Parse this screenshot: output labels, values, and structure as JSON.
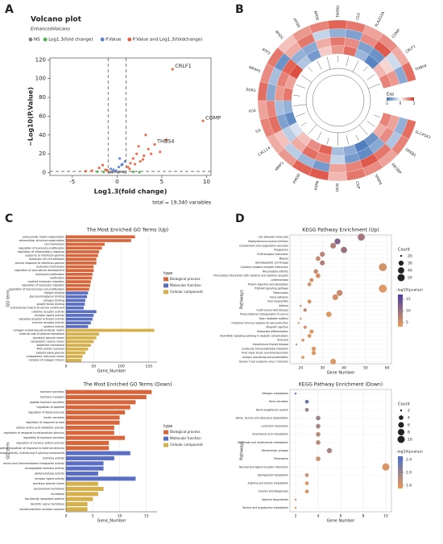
{
  "panels": [
    "A",
    "B",
    "C",
    "D"
  ],
  "chart_data": [
    {
      "type": "scatter",
      "title": "Volcano plot",
      "subtitle": "EnhancedVolcano",
      "xlabel": "Log1.3(fold change)",
      "ylabel": "−Log10(P.Value)",
      "caption": "total = 19,340 variables",
      "xlim": [
        -7.5,
        10.5
      ],
      "ylim": [
        -3,
        122
      ],
      "xticks": [
        -5,
        0,
        5,
        10
      ],
      "yticks": [
        0,
        20,
        40,
        60,
        80,
        100,
        120
      ],
      "thresholds": {
        "x": [
          -1,
          1
        ],
        "y": [
          1.3
        ]
      },
      "series": [
        {
          "name": "NS",
          "color": "#808080",
          "x": [
            -0.5,
            0.3,
            -0.8,
            0.6,
            0.1,
            -0.2,
            0.8,
            -0.6
          ],
          "values": [
            0.5,
            0.8,
            0.3,
            1.0,
            0.2,
            1.1,
            0.6,
            0.9
          ]
        },
        {
          "name": "Log1.3(fold change)",
          "color": "#4caf50",
          "x": [
            -1.5,
            1.8,
            2.5,
            -2.2
          ],
          "values": [
            0.6,
            0.9,
            0.4,
            1.0
          ]
        },
        {
          "name": "P.Value",
          "color": "#5b7fd4",
          "x": [
            -0.4,
            0.2,
            0.6,
            -0.7,
            0.9,
            0.3,
            -0.1,
            0.5
          ],
          "values": [
            3,
            6,
            9,
            4,
            12,
            15,
            2,
            8
          ]
        },
        {
          "name": "P.Value and Log1.3(foldchange)",
          "color": "#e8603c",
          "x": [
            -1.3,
            -2,
            -2.8,
            -1.6,
            -3.5,
            1.2,
            1.5,
            1.8,
            2.2,
            2.6,
            3,
            3.5,
            4.2,
            4.8,
            5.5,
            6.2,
            9.6,
            2.4,
            3.2,
            -1.1,
            1.4,
            2,
            2.9,
            3.8
          ],
          "values": [
            3,
            5,
            2,
            8,
            1.5,
            6,
            10,
            15,
            20,
            12,
            18,
            25,
            30,
            22,
            35,
            110,
            55,
            28,
            40,
            2.5,
            4,
            9,
            14,
            20
          ]
        }
      ],
      "annotations": [
        {
          "text": "CRLF1",
          "x": 6.2,
          "y": 110
        },
        {
          "text": "COMP",
          "x": 9.6,
          "y": 55
        },
        {
          "text": "THBS4",
          "x": 4.2,
          "y": 30
        }
      ]
    },
    {
      "type": "heatmap",
      "layout": "circular",
      "legend_title": "Exp",
      "clim": [
        -2,
        2
      ],
      "cticks": [
        -2,
        0,
        2
      ],
      "colors": [
        "#3b6fb6",
        "#ffffff",
        "#d7301f"
      ],
      "genes": [
        "SLC45A3",
        "GREB1",
        "ABI3BP",
        "SFRP4",
        "CILP",
        "OGN",
        "ASPN",
        "FMOD",
        "MMP3",
        "CXCL14",
        "IL6",
        "FOS",
        "EGR1",
        "NR4A1",
        "ATF3",
        "MYOC",
        "APOD",
        "APOE",
        "TREM1",
        "CLU",
        "PLA2G2A",
        "COMP",
        "CRLF1",
        "THBS4"
      ],
      "rows": [
        [
          1.2,
          0.8,
          -1.5,
          -1.8,
          -1.2,
          -0.9,
          1.5,
          1.1,
          0.6,
          -0.4,
          -1.6,
          -1.1,
          1.3,
          0.9,
          1.7,
          -0.8,
          -1.4,
          0.5,
          1.0,
          1.4,
          -1.0,
          -1.7,
          0.7,
          1.2
        ],
        [
          0.9,
          1.1,
          -1.2,
          -1.6,
          -1.4,
          -0.6,
          1.2,
          1.4,
          0.8,
          -0.7,
          -1.3,
          -0.9,
          1.0,
          1.2,
          1.5,
          -1.1,
          -1.2,
          0.8,
          1.3,
          1.1,
          -1.3,
          -1.5,
          0.4,
          1.0
        ],
        [
          -1.1,
          -0.8,
          1.3,
          1.6,
          1.2,
          0.9,
          -1.4,
          -1.0,
          -0.7,
          0.6,
          1.4,
          1.2,
          -1.2,
          -0.9,
          -1.5,
          0.8,
          1.3,
          -0.6,
          -1.1,
          -1.3,
          1.1,
          1.6,
          -0.5,
          -1.2
        ],
        [
          1.4,
          1.2,
          0.9,
          1.1,
          1.3,
          0.7,
          1.6,
          1.5,
          1.0,
          0.8,
          1.2,
          0.9,
          1.4,
          1.1,
          1.3,
          0.6,
          1.0,
          1.2,
          1.5,
          1.3,
          0.9,
          1.1,
          0.8,
          1.4
        ]
      ]
    },
    {
      "type": "bar",
      "orientation": "horizontal",
      "title": "The Most Enriched GO Terms (Up)",
      "xlabel": "Gene_Number",
      "ylabel": "GO term",
      "legend_title": "type",
      "xlim": [
        0,
        165
      ],
      "xticks": [
        0,
        50,
        100,
        150
      ],
      "series": [
        {
          "name": "Biological process",
          "color": "#d9663a",
          "categories": [
            "extracellular matrix organization",
            "extracellular structure organization",
            "cell chemotaxis",
            "regulation of leukocyte proliferation",
            "regulation of inflammatory response",
            "response to interferon-gamma",
            "leukocyte cell-cell adhesion",
            "cellular response to interferon-gamma",
            "leukocyte chemotaxis",
            "regulation of vasculature development",
            "leukocyte proliferation",
            "ossification",
            "myeloid leukocyte migration",
            "regulation of leukocyte migration",
            "regulation of mononuclear cell proliferation"
          ],
          "values": [
            125,
            118,
            70,
            65,
            60,
            58,
            55,
            55,
            50,
            50,
            48,
            47,
            45,
            44,
            42
          ]
        },
        {
          "name": "Molecular function",
          "color": "#5a6fc4",
          "categories": [
            "integrin binding",
            "glycosaminoglycan binding",
            "collagen binding",
            "growth factor binding",
            "extracellular matrix structural constituent",
            "cytokine receptor activity",
            "receptor ligand activity",
            "signaling receptor activator activity",
            "immune receptor activity",
            "cytokine activity"
          ],
          "values": [
            40,
            38,
            35,
            34,
            32,
            55,
            50,
            48,
            45,
            40
          ]
        },
        {
          "name": "Cellular component",
          "color": "#d6b04a",
          "categories": [
            "collagen-containing extracellular matrix",
            "external side of plasma membrane",
            "secretory granule lumen",
            "cytoplasmic vesicle lumen",
            "basement membrane",
            "MHC protein complex",
            "platelet alpha granule",
            "endoplasmic reticulum lumen",
            "complex of collagen trimers"
          ],
          "values": [
            160,
            60,
            55,
            50,
            45,
            40,
            35,
            30,
            28
          ]
        }
      ]
    },
    {
      "type": "bar",
      "orientation": "horizontal",
      "title": "The Most Enriched GO Terms (Down)",
      "xlabel": "Gene_Number",
      "ylabel": "GO term",
      "legend_title": "type",
      "xlim": [
        0,
        17
      ],
      "xticks": [
        0,
        5,
        10,
        15
      ],
      "series": [
        {
          "name": "Biological process",
          "color": "#d9663a",
          "categories": [
            "hormone secretion",
            "hormone transport",
            "peptide hormone secretion",
            "regulation of appetite",
            "regulation of blood pressure",
            "insulin secretion",
            "regulation of response to food",
            "cellular amino acid metabolic process",
            "regulation of response to extracellular stimulus",
            "regulation of hormone secretion",
            "regulation of nervous system process",
            "negative regulation of response to external stimulus"
          ],
          "values": [
            16,
            15,
            13,
            12,
            11,
            10,
            10,
            9,
            9,
            11,
            8,
            8
          ]
        },
        {
          "name": "Molecular function",
          "color": "#5a6fc4",
          "categories": [
            "hydrolase activity, hydrolyzing O-glycosyl compounds",
            "hormone activity",
            "amino acid transmembrane transporter activity",
            "neuropeptide hormone activity",
            "oxidoreductase activity",
            "receptor ligand activity"
          ],
          "values": [
            12,
            9,
            7,
            7,
            6,
            13
          ]
        },
        {
          "name": "Cellular component",
          "color": "#d6b04a",
          "categories": [
            "secretory granule lumen",
            "peroxisomal membrane",
            "microbody",
            "low-density lipoprotein particle",
            "dendritic spine membrane",
            "neurotransmitter receptor complex"
          ],
          "values": [
            6,
            7,
            6,
            5,
            4,
            4
          ]
        }
      ]
    },
    {
      "type": "dot",
      "title": "KEGG Pathway Enrichment (Up)",
      "xlabel": "Gene Number",
      "ylabel": "Pathways",
      "size_title": "Count",
      "color_title": "-log10(pvalue)",
      "xlim": [
        15,
        62
      ],
      "xticks": [
        20,
        30,
        40,
        50,
        60
      ],
      "size_ticks": [
        20,
        30,
        40,
        50
      ],
      "clim": [
        3,
        17
      ],
      "cticks": [
        5,
        10,
        15
      ],
      "colors": [
        "#e8a060",
        "#4b3fa0"
      ],
      "categories": [
        "Cell adhesion molecules",
        "Staphylococcus aureus infection",
        "Complement and coagulation cascades",
        "Phagosome",
        "ECM-receptor interaction",
        "Malaria",
        "Hematopoietic cell lineage",
        "Cytokine-cytokine receptor interaction",
        "Rheumatoid arthritis",
        "Viral protein interaction with cytokine and cytokine receptor",
        "Leishmaniasis",
        "Protein digestion and absorption",
        "PI3K-Akt signaling pathway",
        "Tuberculosis",
        "Focal adhesion",
        "Viral myocarditis",
        "Asthma",
        "Graft-versus-host disease",
        "Transcriptional misregulation in cancer",
        "Type I diabetes mellitus",
        "Intestinal immune network for IgA production",
        "Allograft rejection",
        "Osteoclast differentiation",
        "AGE-RAGE signaling pathway in diabetic complications",
        "Pertussis",
        "Autoimmune thyroid disease",
        "Leukocyte transendothelial migration",
        "Fluid shear stress and atherosclerosis",
        "Antigen processing and presentation",
        "Human T-cell leukemia virus 1 infection"
      ],
      "values": [
        48,
        37,
        35,
        40,
        30,
        28,
        30,
        58,
        27,
        28,
        25,
        24,
        58,
        38,
        36,
        24,
        20,
        22,
        33,
        20,
        19,
        22,
        25,
        24,
        21,
        18,
        26,
        26,
        21,
        35
      ],
      "pvalues": [
        9,
        12,
        8,
        10,
        7,
        6,
        8,
        5,
        6,
        5,
        5,
        5,
        4,
        6,
        5,
        5,
        6,
        7,
        4,
        6,
        6,
        5,
        4,
        4,
        5,
        5,
        4,
        4,
        5,
        4
      ]
    },
    {
      "type": "dot",
      "title": "KEGG Pathway Enrichment (Down)",
      "xlabel": "Gene Number",
      "ylabel": "Pathways",
      "size_title": "Count",
      "color_title": "-log10(pvalue)",
      "xlim": [
        1.5,
        10.5
      ],
      "xticks": [
        2,
        4,
        6,
        8,
        10
      ],
      "size_ticks": [
        2,
        4,
        6,
        8,
        10
      ],
      "clim": [
        1.5,
        2.5
      ],
      "cticks": [
        1.6,
        {
          "value": 2,
          "label": "2.0"
        },
        2.4
      ],
      "colors": [
        "#e89a5a",
        "#4a6fc8"
      ],
      "categories": [
        "Nitrogen metabolism",
        "Renin secretion",
        "Renin-angiotensin system",
        "Valine, leucine and isoleucine degradation",
        "Long-term depression",
        "Arachidonic acid metabolism",
        "Nicotinate and nicotinamide metabolism",
        "Serotonergic synapse",
        "Peroxisome",
        "Neuroactive ligand-receptor interaction",
        "Sphingolipid metabolism",
        "Arginine and proline metabolism",
        "Ovarian steroidogenesis",
        "Arginine biosynthesis",
        "Taurine and hypotaurine metabolism"
      ],
      "values": [
        2,
        3,
        3,
        4,
        4,
        4,
        4,
        5,
        4,
        10,
        3,
        3,
        3,
        2,
        2
      ],
      "pvalues": [
        2.4,
        2.3,
        2.0,
        2.0,
        1.9,
        1.8,
        1.8,
        1.9,
        1.7,
        1.6,
        1.7,
        1.6,
        1.6,
        1.7,
        1.6
      ]
    }
  ]
}
